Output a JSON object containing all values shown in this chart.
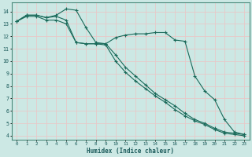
{
  "xlabel": "Humidex (Indice chaleur)",
  "background_color": "#cce8e4",
  "grid_color": "#e8c8c8",
  "line_color": "#1a6a5a",
  "xlim": [
    -0.5,
    23.5
  ],
  "ylim": [
    3.7,
    14.7
  ],
  "yticks": [
    4,
    5,
    6,
    7,
    8,
    9,
    10,
    11,
    12,
    13,
    14
  ],
  "xticks": [
    0,
    1,
    2,
    3,
    4,
    5,
    6,
    7,
    8,
    9,
    10,
    11,
    12,
    13,
    14,
    15,
    16,
    17,
    18,
    19,
    20,
    21,
    22,
    23
  ],
  "line1_x": [
    0,
    1,
    2,
    3,
    4,
    5,
    6,
    7,
    8,
    9,
    10,
    11,
    12,
    13,
    14,
    15,
    16,
    17,
    18,
    19,
    20,
    21,
    22,
    23
  ],
  "line1_y": [
    13.2,
    13.7,
    13.7,
    13.5,
    13.7,
    14.2,
    14.1,
    12.7,
    11.5,
    11.4,
    11.9,
    12.1,
    12.2,
    12.2,
    12.3,
    12.3,
    11.7,
    11.6,
    8.8,
    7.6,
    6.9,
    5.3,
    4.3,
    4.1
  ],
  "line2_x": [
    0,
    1,
    2,
    3,
    4,
    5,
    6,
    7,
    8,
    9,
    10,
    11,
    12,
    13,
    14,
    15,
    16,
    17,
    18,
    19,
    20,
    21,
    22,
    23
  ],
  "line2_y": [
    13.2,
    13.7,
    13.7,
    13.5,
    13.6,
    13.3,
    11.5,
    11.4,
    11.4,
    11.4,
    10.5,
    9.5,
    8.8,
    8.1,
    7.4,
    6.9,
    6.4,
    5.8,
    5.3,
    5.0,
    4.6,
    4.3,
    4.2,
    4.1
  ],
  "line3_x": [
    0,
    1,
    2,
    3,
    4,
    5,
    6,
    7,
    8,
    9,
    10,
    11,
    12,
    13,
    14,
    15,
    16,
    17,
    18,
    19,
    20,
    21,
    22,
    23
  ],
  "line3_y": [
    13.2,
    13.6,
    13.6,
    13.3,
    13.3,
    13.0,
    11.5,
    11.4,
    11.4,
    11.3,
    10.0,
    9.1,
    8.4,
    7.8,
    7.2,
    6.7,
    6.1,
    5.6,
    5.2,
    4.9,
    4.5,
    4.2,
    4.1,
    4.0
  ],
  "spine_color": "#4a8a7a",
  "tick_color": "#1a5a5a",
  "xlabel_color": "#1a5a5a"
}
